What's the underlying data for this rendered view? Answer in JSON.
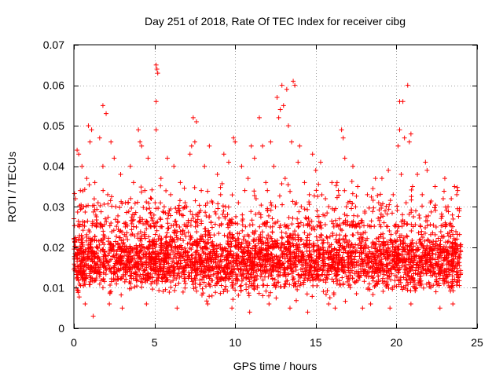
{
  "chart_data": {
    "type": "scatter",
    "title": "Day 251 of 2018, Rate Of TEC Index for receiver cibg",
    "xlabel": "GPS time / hours",
    "ylabel": "ROTI / TECUs",
    "xlim": [
      0,
      25
    ],
    "ylim": [
      0,
      0.07
    ],
    "x_ticks": [
      0,
      5,
      10,
      15,
      20,
      25
    ],
    "x_tick_labels": [
      "0",
      "5",
      "10",
      "15",
      "20",
      "25"
    ],
    "y_ticks": [
      0,
      0.01,
      0.02,
      0.03,
      0.04,
      0.05,
      0.06,
      0.07
    ],
    "y_tick_labels": [
      "0",
      "0.01",
      "0.02",
      "0.03",
      "0.04",
      "0.05",
      "0.06",
      "0.07"
    ],
    "grid": true,
    "marker": "+",
    "series_color": "#ff0000",
    "data_x_range_hours": [
      0,
      24
    ],
    "dense_band_roti": [
      0.006,
      0.025
    ],
    "series": [
      {
        "name": "ROTI",
        "points": [
          [
            5.1,
            0.065
          ],
          [
            5.15,
            0.064
          ],
          [
            5.2,
            0.063
          ],
          [
            5.1,
            0.056
          ],
          [
            12.9,
            0.06
          ],
          [
            13.2,
            0.059
          ],
          [
            13.6,
            0.061
          ],
          [
            13.7,
            0.06
          ],
          [
            20.7,
            0.06
          ],
          [
            20.2,
            0.056
          ],
          [
            20.4,
            0.056
          ],
          [
            1.8,
            0.055
          ],
          [
            2.0,
            0.053
          ],
          [
            12.6,
            0.057
          ],
          [
            12.8,
            0.054
          ],
          [
            13.0,
            0.055
          ],
          [
            11.5,
            0.052
          ],
          [
            12.7,
            0.052
          ],
          [
            7.4,
            0.052
          ],
          [
            7.6,
            0.051
          ],
          [
            0.9,
            0.05
          ],
          [
            1.1,
            0.049
          ],
          [
            4.0,
            0.049
          ],
          [
            5.1,
            0.049
          ],
          [
            13.3,
            0.05
          ],
          [
            16.6,
            0.049
          ],
          [
            20.2,
            0.049
          ],
          [
            16.7,
            0.047
          ],
          [
            1.6,
            0.047
          ],
          [
            20.9,
            0.048
          ],
          [
            20.5,
            0.047
          ],
          [
            1.0,
            0.046
          ],
          [
            2.3,
            0.046
          ],
          [
            4.1,
            0.046
          ],
          [
            7.5,
            0.046
          ],
          [
            10.0,
            0.046
          ],
          [
            12.2,
            0.046
          ],
          [
            13.5,
            0.046
          ],
          [
            20.8,
            0.046
          ],
          [
            0.2,
            0.044
          ],
          [
            4.2,
            0.045
          ],
          [
            7.3,
            0.045
          ],
          [
            8.4,
            0.045
          ],
          [
            9.9,
            0.047
          ],
          [
            11.0,
            0.045
          ],
          [
            11.7,
            0.045
          ],
          [
            14.0,
            0.045
          ],
          [
            20.1,
            0.045
          ],
          [
            16.8,
            0.042
          ],
          [
            21.8,
            0.041
          ],
          [
            21.9,
            0.039
          ],
          [
            0.3,
            0.043
          ],
          [
            2.5,
            0.042
          ],
          [
            4.6,
            0.042
          ],
          [
            5.8,
            0.042
          ],
          [
            7.2,
            0.043
          ],
          [
            9.3,
            0.043
          ],
          [
            11.2,
            0.042
          ],
          [
            14.8,
            0.043
          ],
          [
            15.3,
            0.041
          ],
          [
            19.5,
            0.039
          ],
          [
            20.3,
            0.038
          ],
          [
            0.5,
            0.04
          ],
          [
            1.8,
            0.04
          ],
          [
            3.5,
            0.04
          ],
          [
            6.2,
            0.04
          ],
          [
            8.1,
            0.04
          ],
          [
            9.6,
            0.041
          ],
          [
            10.4,
            0.04
          ],
          [
            12.4,
            0.04
          ],
          [
            13.9,
            0.041
          ],
          [
            15.0,
            0.039
          ],
          [
            17.3,
            0.04
          ],
          [
            18.7,
            0.037
          ],
          [
            21.3,
            0.038
          ],
          [
            23.0,
            0.037
          ],
          [
            0.8,
            0.037
          ],
          [
            1.3,
            0.036
          ],
          [
            2.9,
            0.038
          ],
          [
            3.7,
            0.036
          ],
          [
            5.4,
            0.037
          ],
          [
            6.6,
            0.036
          ],
          [
            8.9,
            0.038
          ],
          [
            10.8,
            0.037
          ],
          [
            11.9,
            0.036
          ],
          [
            13.1,
            0.037
          ],
          [
            14.3,
            0.036
          ],
          [
            16.0,
            0.036
          ],
          [
            17.6,
            0.035
          ],
          [
            19.1,
            0.037
          ],
          [
            21.0,
            0.035
          ],
          [
            22.4,
            0.035
          ],
          [
            23.6,
            0.035
          ],
          [
            23.8,
            0.034
          ],
          [
            0.4,
            0.034
          ],
          [
            2.1,
            0.033
          ],
          [
            4.4,
            0.034
          ],
          [
            6.0,
            0.033
          ],
          [
            7.9,
            0.034
          ],
          [
            9.1,
            0.033
          ],
          [
            10.6,
            0.034
          ],
          [
            12.0,
            0.034
          ],
          [
            14.6,
            0.033
          ],
          [
            16.4,
            0.034
          ],
          [
            18.2,
            0.033
          ],
          [
            19.8,
            0.033
          ],
          [
            21.6,
            0.033
          ],
          [
            22.9,
            0.032
          ],
          [
            23.4,
            0.032
          ],
          [
            0.1,
            0.032
          ],
          [
            1.5,
            0.031
          ],
          [
            3.2,
            0.031
          ],
          [
            4.8,
            0.032
          ],
          [
            6.9,
            0.031
          ],
          [
            8.6,
            0.031
          ],
          [
            10.2,
            0.031
          ],
          [
            11.3,
            0.032
          ],
          [
            13.8,
            0.031
          ],
          [
            15.6,
            0.032
          ],
          [
            17.0,
            0.031
          ],
          [
            18.9,
            0.031
          ],
          [
            20.6,
            0.031
          ],
          [
            22.1,
            0.031
          ],
          [
            23.2,
            0.03
          ],
          [
            0.6,
            0.03
          ],
          [
            2.6,
            0.03
          ],
          [
            5.6,
            0.03
          ],
          [
            7.0,
            0.03
          ],
          [
            9.4,
            0.03
          ],
          [
            12.5,
            0.03
          ],
          [
            14.1,
            0.03
          ],
          [
            16.9,
            0.03
          ],
          [
            19.3,
            0.029
          ],
          [
            21.2,
            0.029
          ],
          [
            23.9,
            0.029
          ],
          [
            1.2,
            0.003
          ],
          [
            3.0,
            0.005
          ],
          [
            6.4,
            0.005
          ],
          [
            9.8,
            0.005
          ],
          [
            10.9,
            0.004
          ],
          [
            13.4,
            0.005
          ],
          [
            14.5,
            0.004
          ],
          [
            16.2,
            0.005
          ],
          [
            17.9,
            0.005
          ],
          [
            19.6,
            0.005
          ],
          [
            22.7,
            0.005
          ],
          [
            23.5,
            0.006
          ],
          [
            0.7,
            0.006
          ],
          [
            4.5,
            0.006
          ],
          [
            8.3,
            0.006
          ],
          [
            12.1,
            0.006
          ],
          [
            15.8,
            0.006
          ],
          [
            18.4,
            0.006
          ],
          [
            20.9,
            0.006
          ],
          [
            2.2,
            0.006
          ]
        ]
      }
    ]
  }
}
